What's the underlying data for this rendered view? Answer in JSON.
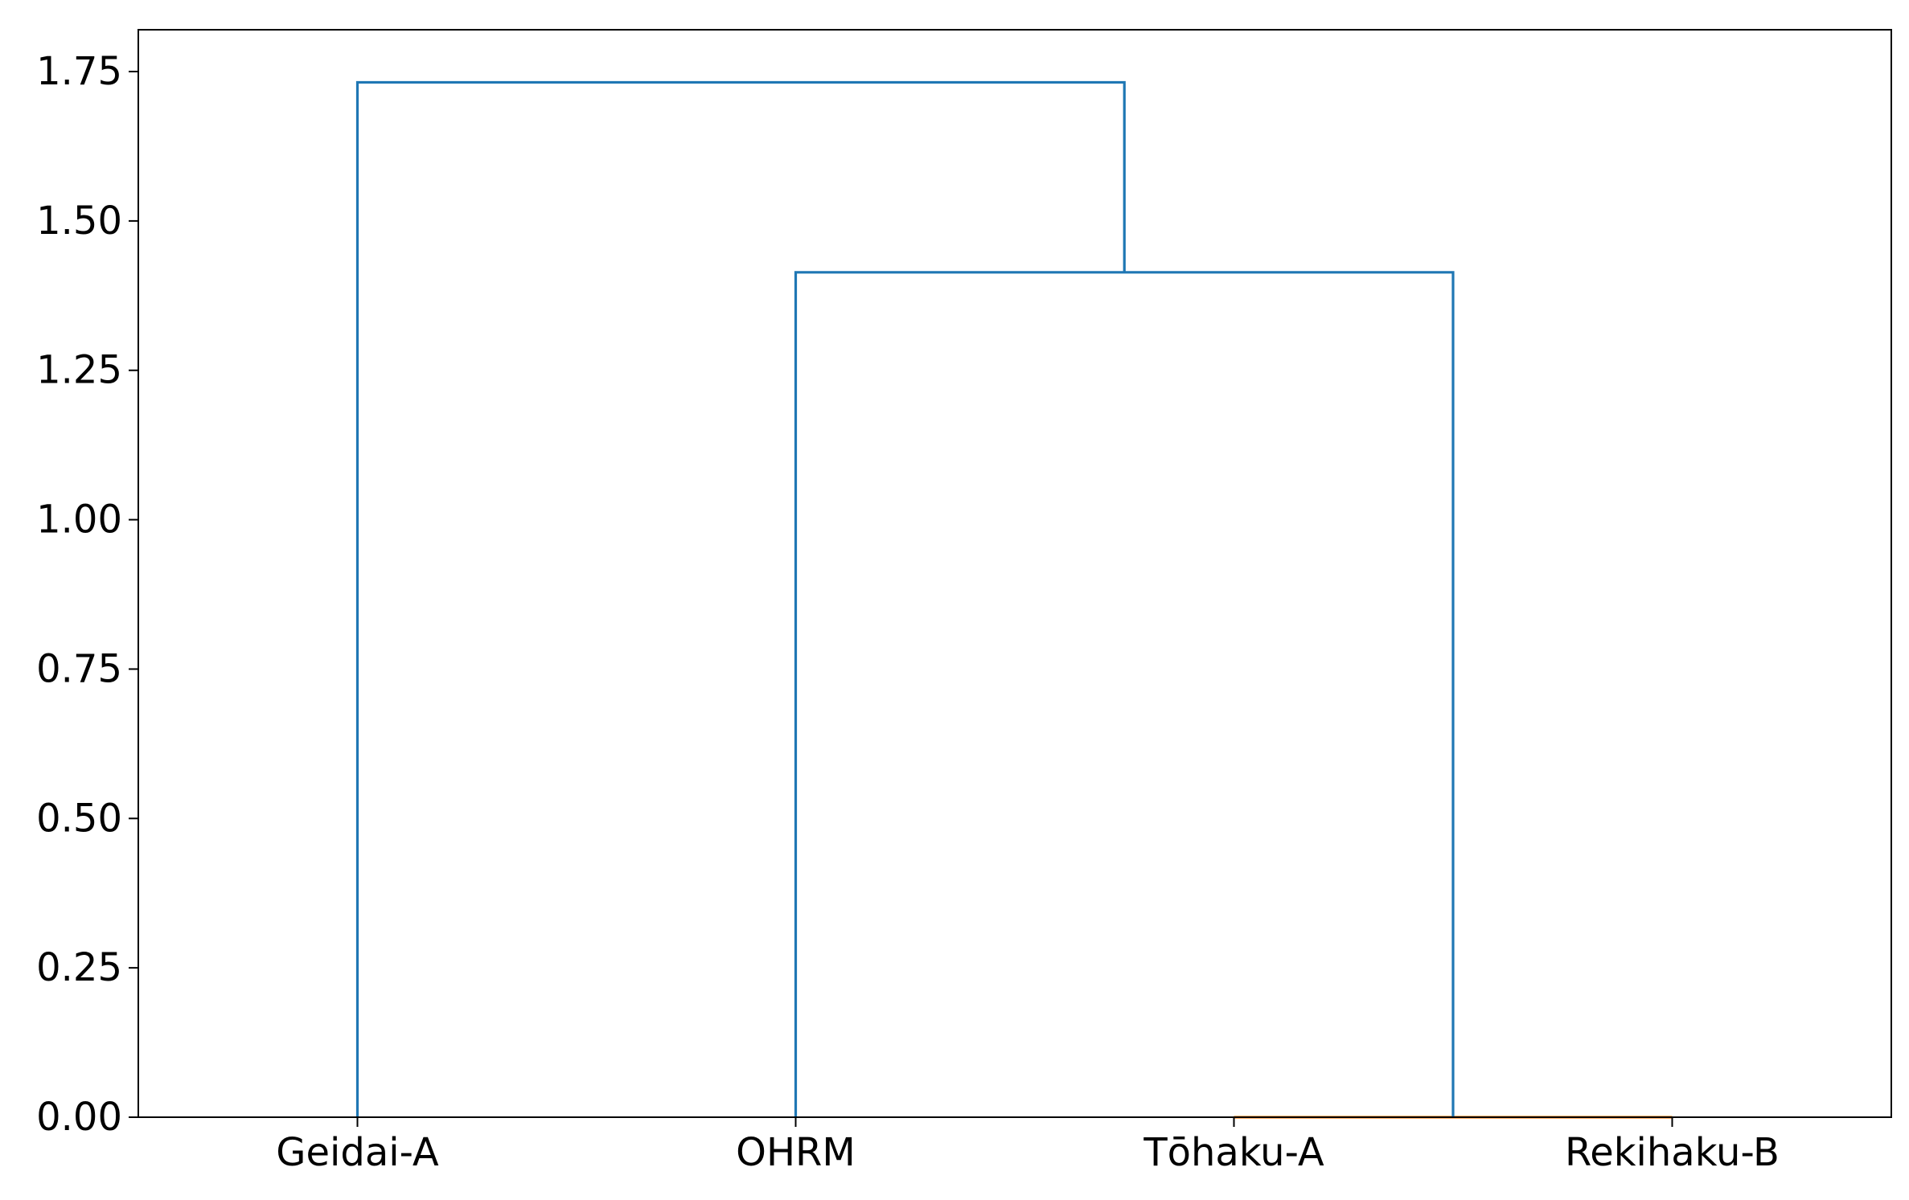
{
  "chart_data": {
    "type": "dendrogram",
    "title": "",
    "xlabel": "",
    "ylabel": "",
    "ylim": [
      0,
      1.82
    ],
    "yticks": [
      0.0,
      0.25,
      0.5,
      0.75,
      1.0,
      1.25,
      1.5,
      1.75
    ],
    "ytick_labels": [
      "0.00",
      "0.25",
      "0.50",
      "0.75",
      "1.00",
      "1.25",
      "1.50",
      "1.75"
    ],
    "leaves": [
      "Geidai-A",
      "OHRM",
      "Tōhaku-A",
      "Rekihaku-B"
    ],
    "merges": [
      {
        "left": "Tōhaku-A",
        "right": "Rekihaku-B",
        "height": 0.0,
        "color": "#ff7f0e"
      },
      {
        "left": "OHRM",
        "right": "[Tōhaku-A, Rekihaku-B]",
        "height": 1.414,
        "color": "#1f77b4"
      },
      {
        "left": "Geidai-A",
        "right": "[OHRM, Tōhaku-A, Rekihaku-B]",
        "height": 1.732,
        "color": "#1f77b4"
      }
    ],
    "grid": false,
    "colors": {
      "link_above": "#1f77b4",
      "cluster_0": "#ff7f0e"
    }
  }
}
